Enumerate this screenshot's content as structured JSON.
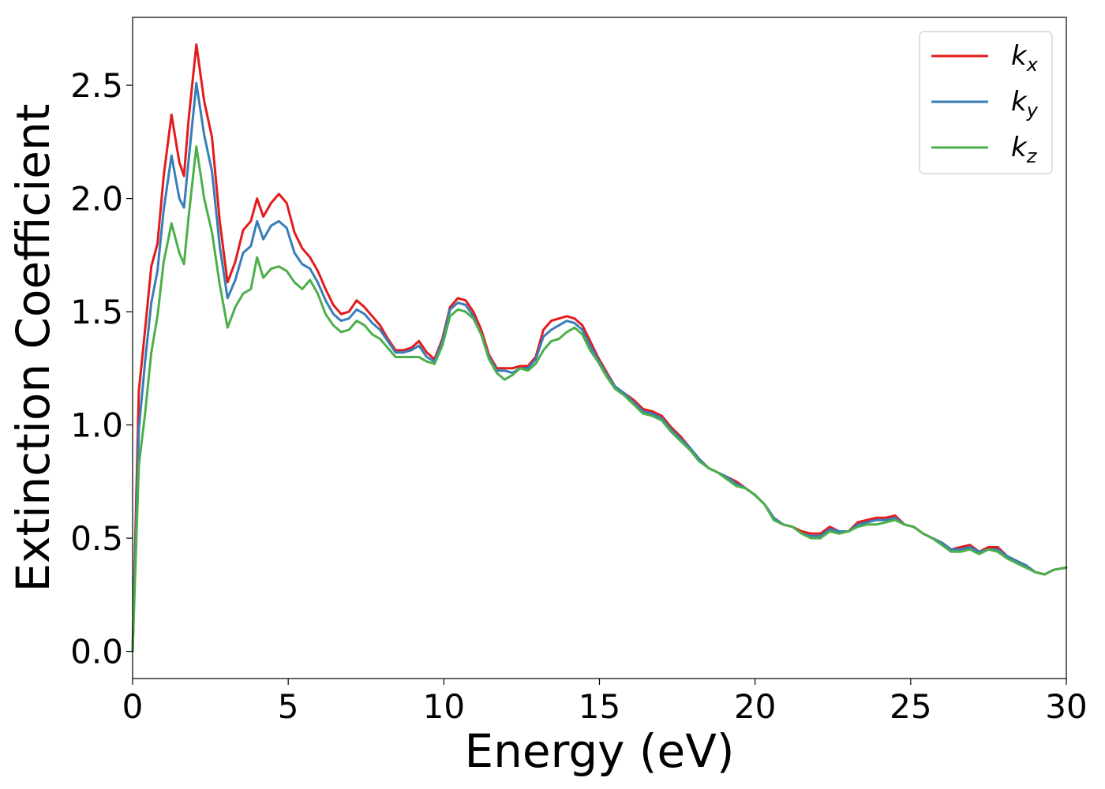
{
  "chart_data": {
    "type": "line",
    "title": "",
    "xlabel": "Energy (eV)",
    "ylabel": "Extinction Coefficient",
    "xlim": [
      0,
      30
    ],
    "ylim": [
      -0.12,
      2.8
    ],
    "xticks": [
      0,
      5,
      10,
      15,
      20,
      25,
      30
    ],
    "yticks": [
      0.0,
      0.5,
      1.0,
      1.5,
      2.0,
      2.5
    ],
    "xtick_labels": [
      "0",
      "5",
      "10",
      "15",
      "20",
      "25",
      "30"
    ],
    "ytick_labels": [
      "0.0",
      "0.5",
      "1.0",
      "1.5",
      "2.0",
      "2.5"
    ],
    "grid": false,
    "legend_position": "top-right",
    "x": [
      0,
      0.2,
      0.4,
      0.6,
      0.8,
      1.0,
      1.25,
      1.5,
      1.65,
      1.8,
      2.05,
      2.3,
      2.55,
      2.8,
      3.05,
      3.3,
      3.55,
      3.8,
      4.0,
      4.2,
      4.45,
      4.7,
      4.95,
      5.2,
      5.45,
      5.7,
      5.95,
      6.2,
      6.45,
      6.7,
      6.95,
      7.2,
      7.45,
      7.7,
      7.95,
      8.2,
      8.45,
      8.7,
      8.95,
      9.2,
      9.45,
      9.7,
      9.95,
      10.2,
      10.45,
      10.7,
      10.95,
      11.2,
      11.45,
      11.7,
      11.95,
      12.2,
      12.45,
      12.7,
      12.95,
      13.2,
      13.45,
      13.7,
      13.95,
      14.2,
      14.45,
      14.7,
      14.95,
      15.2,
      15.5,
      15.8,
      16.1,
      16.4,
      16.7,
      17.0,
      17.3,
      17.6,
      17.9,
      18.2,
      18.5,
      18.8,
      19.1,
      19.4,
      19.7,
      20.0,
      20.3,
      20.6,
      20.9,
      21.2,
      21.5,
      21.8,
      22.1,
      22.4,
      22.7,
      23.0,
      23.3,
      23.6,
      23.9,
      24.2,
      24.5,
      24.8,
      25.1,
      25.4,
      25.7,
      26.0,
      26.3,
      26.6,
      26.9,
      27.2,
      27.5,
      27.8,
      28.1,
      28.4,
      28.7,
      29.0,
      29.3,
      29.6,
      30.0
    ],
    "series": [
      {
        "name_base": "k",
        "name_sub": "x",
        "color": "#e41a1c",
        "values": [
          0.0,
          1.15,
          1.42,
          1.7,
          1.8,
          2.1,
          2.37,
          2.16,
          2.1,
          2.35,
          2.68,
          2.43,
          2.27,
          1.9,
          1.63,
          1.72,
          1.86,
          1.9,
          2.0,
          1.92,
          1.98,
          2.02,
          1.98,
          1.85,
          1.78,
          1.74,
          1.68,
          1.6,
          1.53,
          1.49,
          1.5,
          1.55,
          1.52,
          1.48,
          1.44,
          1.38,
          1.33,
          1.33,
          1.34,
          1.37,
          1.32,
          1.29,
          1.38,
          1.52,
          1.56,
          1.55,
          1.5,
          1.42,
          1.31,
          1.25,
          1.25,
          1.25,
          1.26,
          1.26,
          1.3,
          1.42,
          1.46,
          1.47,
          1.48,
          1.47,
          1.44,
          1.37,
          1.3,
          1.24,
          1.17,
          1.14,
          1.11,
          1.07,
          1.06,
          1.04,
          0.99,
          0.95,
          0.9,
          0.85,
          0.81,
          0.79,
          0.77,
          0.75,
          0.72,
          0.69,
          0.65,
          0.59,
          0.56,
          0.55,
          0.53,
          0.52,
          0.52,
          0.55,
          0.53,
          0.53,
          0.57,
          0.58,
          0.59,
          0.59,
          0.6,
          0.56,
          0.55,
          0.52,
          0.5,
          0.48,
          0.45,
          0.46,
          0.47,
          0.44,
          0.46,
          0.46,
          0.42,
          0.4,
          0.38,
          0.35,
          0.34,
          0.36,
          0.37
        ]
      },
      {
        "name_base": "k",
        "name_sub": "y",
        "color": "#377eb8",
        "values": [
          0.0,
          0.98,
          1.28,
          1.54,
          1.68,
          1.95,
          2.19,
          2.0,
          1.96,
          2.17,
          2.51,
          2.28,
          2.12,
          1.79,
          1.56,
          1.64,
          1.76,
          1.79,
          1.9,
          1.82,
          1.88,
          1.9,
          1.87,
          1.76,
          1.71,
          1.69,
          1.63,
          1.55,
          1.49,
          1.46,
          1.47,
          1.51,
          1.49,
          1.45,
          1.42,
          1.37,
          1.32,
          1.32,
          1.33,
          1.35,
          1.3,
          1.28,
          1.37,
          1.51,
          1.54,
          1.53,
          1.48,
          1.4,
          1.3,
          1.24,
          1.24,
          1.23,
          1.25,
          1.25,
          1.29,
          1.39,
          1.42,
          1.44,
          1.46,
          1.45,
          1.42,
          1.35,
          1.29,
          1.23,
          1.17,
          1.14,
          1.1,
          1.06,
          1.05,
          1.03,
          0.98,
          0.94,
          0.9,
          0.85,
          0.81,
          0.79,
          0.77,
          0.74,
          0.72,
          0.69,
          0.65,
          0.59,
          0.56,
          0.55,
          0.52,
          0.51,
          0.51,
          0.54,
          0.53,
          0.53,
          0.56,
          0.57,
          0.58,
          0.58,
          0.59,
          0.56,
          0.55,
          0.52,
          0.5,
          0.48,
          0.45,
          0.45,
          0.46,
          0.44,
          0.45,
          0.45,
          0.42,
          0.4,
          0.38,
          0.35,
          0.34,
          0.36,
          0.37
        ]
      },
      {
        "name_base": "k",
        "name_sub": "z",
        "color": "#4daf4a",
        "values": [
          0.0,
          0.82,
          1.05,
          1.32,
          1.48,
          1.72,
          1.89,
          1.76,
          1.71,
          1.92,
          2.23,
          2.0,
          1.85,
          1.62,
          1.43,
          1.52,
          1.58,
          1.6,
          1.74,
          1.65,
          1.69,
          1.7,
          1.68,
          1.63,
          1.6,
          1.64,
          1.58,
          1.49,
          1.44,
          1.41,
          1.42,
          1.46,
          1.44,
          1.4,
          1.38,
          1.34,
          1.3,
          1.3,
          1.3,
          1.3,
          1.28,
          1.27,
          1.35,
          1.48,
          1.51,
          1.5,
          1.47,
          1.4,
          1.29,
          1.23,
          1.2,
          1.22,
          1.25,
          1.24,
          1.27,
          1.33,
          1.37,
          1.38,
          1.41,
          1.43,
          1.4,
          1.33,
          1.28,
          1.22,
          1.16,
          1.13,
          1.09,
          1.05,
          1.04,
          1.02,
          0.97,
          0.93,
          0.89,
          0.84,
          0.81,
          0.79,
          0.76,
          0.73,
          0.72,
          0.69,
          0.65,
          0.58,
          0.56,
          0.55,
          0.52,
          0.5,
          0.5,
          0.53,
          0.52,
          0.53,
          0.55,
          0.56,
          0.56,
          0.57,
          0.58,
          0.56,
          0.55,
          0.52,
          0.5,
          0.47,
          0.44,
          0.44,
          0.45,
          0.43,
          0.45,
          0.44,
          0.41,
          0.39,
          0.37,
          0.35,
          0.34,
          0.36,
          0.37
        ]
      }
    ]
  }
}
